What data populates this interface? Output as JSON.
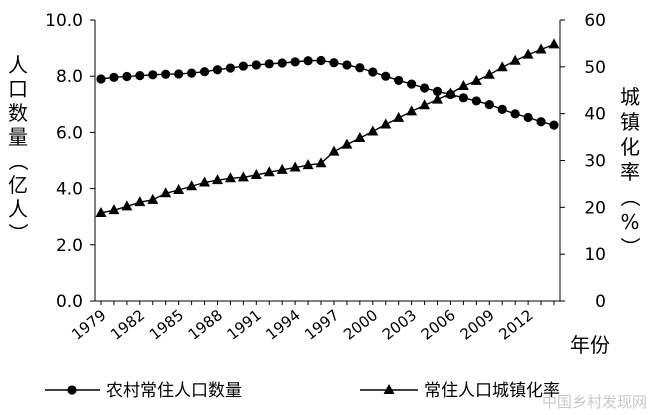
{
  "chart_data": {
    "type": "line",
    "x": [
      1979,
      1980,
      1981,
      1982,
      1983,
      1984,
      1985,
      1986,
      1987,
      1988,
      1989,
      1990,
      1991,
      1992,
      1993,
      1994,
      1995,
      1996,
      1997,
      1998,
      1999,
      2000,
      2001,
      2002,
      2003,
      2004,
      2005,
      2006,
      2007,
      2008,
      2009,
      2010,
      2011,
      2012,
      2013,
      2014
    ],
    "x_tick_labels": [
      "1979",
      "1982",
      "1985",
      "1988",
      "1991",
      "1994",
      "1997",
      "2000",
      "2003",
      "2006",
      "2009",
      "2012"
    ],
    "xlabel": "年份",
    "y_left_label": "人口数量（亿人）",
    "y_right_label": "城镇化率（%）",
    "y_left_lim": [
      0,
      10
    ],
    "y_right_lim": [
      0,
      60
    ],
    "y_left_ticks": [
      "0.0",
      "2.0",
      "4.0",
      "6.0",
      "8.0",
      "10.0"
    ],
    "y_right_ticks": [
      "0",
      "10",
      "20",
      "30",
      "40",
      "50",
      "60"
    ],
    "grid": false,
    "legend_position": "bottom",
    "series": [
      {
        "name": "农村常住人口数量",
        "axis": "left",
        "marker": "circle",
        "values": [
          7.9,
          7.96,
          7.99,
          8.02,
          8.05,
          8.07,
          8.08,
          8.11,
          8.16,
          8.23,
          8.29,
          8.36,
          8.4,
          8.44,
          8.47,
          8.51,
          8.55,
          8.56,
          8.48,
          8.4,
          8.3,
          8.15,
          8.0,
          7.85,
          7.72,
          7.58,
          7.46,
          7.35,
          7.23,
          7.12,
          6.99,
          6.82,
          6.66,
          6.53,
          6.38,
          6.26
        ]
      },
      {
        "name": "常住人口城镇化率",
        "axis": "right",
        "marker": "triangle",
        "values": [
          18.8,
          19.4,
          20.2,
          21.1,
          21.6,
          23.0,
          23.7,
          24.5,
          25.3,
          25.8,
          26.2,
          26.4,
          26.9,
          27.5,
          28.0,
          28.5,
          29.0,
          29.4,
          31.9,
          33.4,
          34.8,
          36.2,
          37.7,
          39.1,
          40.5,
          41.8,
          43.0,
          44.3,
          45.9,
          47.0,
          48.3,
          49.9,
          51.3,
          52.6,
          53.7,
          54.8
        ]
      }
    ]
  },
  "watermark": "中国乡村发现网"
}
